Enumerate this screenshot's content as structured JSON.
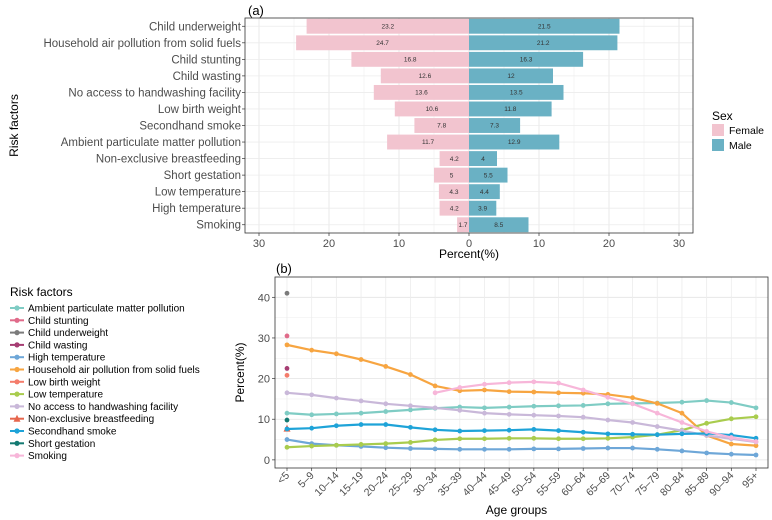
{
  "chart_data": [
    {
      "panel": "(a)",
      "type": "bar",
      "orientation": "horizontal",
      "subtype": "population-pyramid",
      "xlabel": "Percent(%)",
      "ylabel": "Risk factors",
      "xlim": [
        -32,
        32
      ],
      "xticks": [
        -30,
        -20,
        -10,
        0,
        10,
        20,
        30
      ],
      "xtick_labels": [
        "30",
        "20",
        "10",
        "0",
        "10",
        "20",
        "30"
      ],
      "legend_title": "Sex",
      "legend_position": "right",
      "categories": [
        "Child underweight",
        "Household air pollution from solid fuels",
        "Child stunting",
        "Child wasting",
        "No access to handwashing facility",
        "Low birth weight",
        "Secondhand smoke",
        "Ambient particulate matter pollution",
        "Non-exclusive breastfeeding",
        "Short gestation",
        "Low temperature",
        "High temperature",
        "Smoking"
      ],
      "series": [
        {
          "name": "Female",
          "color": "#f2c4cf",
          "values": [
            23.2,
            24.7,
            16.8,
            12.6,
            13.6,
            10.6,
            7.8,
            11.7,
            4.2,
            5,
            4.3,
            4.2,
            1.7
          ]
        },
        {
          "name": "Male",
          "color": "#6ab1c4",
          "values": [
            21.5,
            21.2,
            16.3,
            12,
            13.5,
            11.8,
            7.3,
            12.9,
            4,
            5.5,
            4.4,
            3.9,
            8.5
          ]
        }
      ]
    },
    {
      "panel": "(b)",
      "type": "line",
      "xlabel": "Age groups",
      "ylabel": "Percent(%)",
      "ylim": [
        -2,
        45
      ],
      "yticks": [
        0,
        10,
        20,
        30,
        40
      ],
      "legend_title": "Risk factors",
      "legend_position": "left",
      "x": [
        "<5",
        "5–9",
        "10–14",
        "15–19",
        "20–24",
        "25–29",
        "30–34",
        "35–39",
        "40–44",
        "45–49",
        "50–54",
        "55–59",
        "60–64",
        "65–69",
        "70–74",
        "75–79",
        "80–84",
        "85–89",
        "90–94",
        "95+"
      ],
      "series": [
        {
          "name": "Ambient particulate matter pollution",
          "color": "#7fccc4",
          "values": [
            11.5,
            11.1,
            11.3,
            11.5,
            11.9,
            12.3,
            12.7,
            13.0,
            12.8,
            13.0,
            13.2,
            13.3,
            13.4,
            13.8,
            13.9,
            14.0,
            14.2,
            14.6,
            14.1,
            12.8
          ]
        },
        {
          "name": "Child stunting",
          "color": "#e06b8a",
          "values": [
            30.5,
            null,
            null,
            null,
            null,
            null,
            null,
            null,
            null,
            null,
            null,
            null,
            null,
            null,
            null,
            null,
            null,
            null,
            null,
            null
          ]
        },
        {
          "name": "Child underweight",
          "color": "#7b7b7b",
          "values": [
            41.0,
            null,
            null,
            null,
            null,
            null,
            null,
            null,
            null,
            null,
            null,
            null,
            null,
            null,
            null,
            null,
            null,
            null,
            null,
            null
          ]
        },
        {
          "name": "Child wasting",
          "color": "#a63d73",
          "values": [
            22.5,
            null,
            null,
            null,
            null,
            null,
            null,
            null,
            null,
            null,
            null,
            null,
            null,
            null,
            null,
            null,
            null,
            null,
            null,
            null
          ]
        },
        {
          "name": "High temperature",
          "color": "#6ea7d8",
          "values": [
            5.0,
            4.0,
            3.6,
            3.3,
            3.0,
            2.8,
            2.7,
            2.6,
            2.6,
            2.6,
            2.7,
            2.7,
            2.8,
            2.9,
            2.9,
            2.6,
            2.2,
            1.7,
            1.4,
            1.2
          ]
        },
        {
          "name": "Household air pollution from solid fuels",
          "color": "#f7a541",
          "values": [
            28.3,
            27.0,
            26.1,
            24.7,
            23.0,
            21.0,
            18.2,
            17.0,
            17.2,
            16.8,
            16.7,
            16.5,
            16.4,
            16.1,
            15.3,
            13.9,
            11.5,
            6.0,
            3.9,
            3.5
          ]
        },
        {
          "name": "Low birth weight",
          "color": "#f47c6b",
          "values": [
            20.8,
            null,
            null,
            null,
            null,
            null,
            null,
            null,
            null,
            null,
            null,
            null,
            null,
            null,
            null,
            null,
            null,
            null,
            null,
            null
          ]
        },
        {
          "name": "Low temperature",
          "color": "#a9cc4e",
          "values": [
            3.1,
            3.4,
            3.6,
            3.8,
            4.0,
            4.3,
            4.9,
            5.2,
            5.2,
            5.3,
            5.3,
            5.2,
            5.2,
            5.3,
            5.6,
            6.2,
            7.3,
            9.0,
            10.1,
            10.6
          ]
        },
        {
          "name": "No access to handwashing facility",
          "color": "#c9b8d9",
          "values": [
            16.5,
            16.0,
            15.2,
            14.5,
            13.8,
            13.3,
            12.8,
            12.2,
            11.5,
            11.2,
            11.0,
            10.8,
            10.5,
            9.8,
            9.2,
            8.2,
            7.2,
            6.0,
            5.2,
            4.4
          ]
        },
        {
          "name": "Non-exclusive breastfeeding",
          "color": "#e6664d",
          "values": [
            7.7,
            null,
            null,
            null,
            null,
            null,
            null,
            null,
            null,
            null,
            null,
            null,
            null,
            null,
            null,
            null,
            null,
            null,
            null,
            null
          ]
        },
        {
          "name": "Secondhand smoke",
          "color": "#1ea3d8",
          "values": [
            7.6,
            7.8,
            8.4,
            8.7,
            8.7,
            8.0,
            7.4,
            7.1,
            7.2,
            7.3,
            7.5,
            7.2,
            6.8,
            6.4,
            6.3,
            6.2,
            6.4,
            6.5,
            6.1,
            5.3
          ]
        },
        {
          "name": "Short gestation",
          "color": "#147a72",
          "values": [
            9.8,
            null,
            null,
            null,
            null,
            null,
            null,
            null,
            null,
            null,
            null,
            null,
            null,
            null,
            null,
            null,
            null,
            null,
            null,
            null
          ]
        },
        {
          "name": "Smoking",
          "color": "#f7b6d9",
          "values": [
            null,
            null,
            null,
            null,
            null,
            null,
            16.5,
            17.8,
            18.6,
            19.0,
            19.2,
            18.9,
            17.2,
            15.4,
            13.8,
            11.5,
            9.2,
            7.0,
            5.5,
            4.5
          ]
        }
      ]
    }
  ]
}
